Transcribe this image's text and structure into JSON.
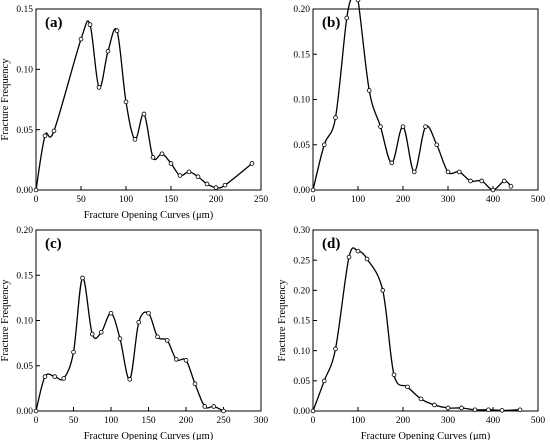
{
  "chart_data": [
    {
      "type": "line",
      "panel_label": "(a)",
      "xlabel": "Fracture Opening Curves (μm)",
      "ylabel": "Fracture Frequency",
      "xlim": [
        0,
        250
      ],
      "ylim": [
        0,
        0.15
      ],
      "xticks": [
        0,
        50,
        100,
        150,
        200,
        250
      ],
      "xtick_labels": [
        "0",
        "50",
        "100",
        "150",
        "200",
        "250"
      ],
      "yticks": [
        0,
        0.05,
        0.1,
        0.15
      ],
      "ytick_labels": [
        "0.00",
        "0.05",
        "0.10",
        "0.15"
      ],
      "grid": false,
      "x": [
        0,
        10,
        20,
        50,
        60,
        70,
        80,
        90,
        100,
        110,
        120,
        130,
        140,
        150,
        160,
        170,
        180,
        190,
        200,
        210,
        240
      ],
      "y": [
        0.0,
        0.045,
        0.049,
        0.125,
        0.137,
        0.085,
        0.115,
        0.132,
        0.073,
        0.042,
        0.063,
        0.027,
        0.03,
        0.022,
        0.012,
        0.015,
        0.011,
        0.005,
        0.002,
        0.004,
        0.022
      ]
    },
    {
      "type": "line",
      "panel_label": "(b)",
      "xlabel": "",
      "ylabel": "",
      "xlim": [
        0,
        500
      ],
      "ylim": [
        0,
        0.2
      ],
      "xticks": [
        0,
        100,
        200,
        300,
        400,
        500
      ],
      "xtick_labels": [
        "0",
        "100",
        "200",
        "300",
        "400",
        "500"
      ],
      "yticks": [
        0,
        0.05,
        0.1,
        0.15,
        0.2
      ],
      "ytick_labels": [
        "0.00",
        "0.05",
        "0.10",
        "0.15",
        "0.20"
      ],
      "grid": false,
      "x": [
        0,
        25,
        50,
        75,
        90,
        100,
        125,
        150,
        175,
        200,
        225,
        250,
        275,
        300,
        325,
        350,
        375,
        400,
        425,
        440
      ],
      "y": [
        0.0,
        0.05,
        0.08,
        0.19,
        0.215,
        0.21,
        0.11,
        0.07,
        0.03,
        0.07,
        0.02,
        0.07,
        0.05,
        0.02,
        0.02,
        0.01,
        0.01,
        0.0,
        0.01,
        0.004
      ]
    },
    {
      "type": "line",
      "panel_label": "(c)",
      "xlabel": "Fracture Opening Curves (μm)",
      "ylabel": "Fracture Frequency",
      "xlim": [
        0,
        300
      ],
      "ylim": [
        0,
        0.2
      ],
      "xticks": [
        0,
        50,
        100,
        150,
        200,
        250,
        300
      ],
      "xtick_labels": [
        "0",
        "50",
        "100",
        "150",
        "200",
        "250",
        "300"
      ],
      "yticks": [
        0,
        0.05,
        0.1,
        0.15,
        0.2
      ],
      "ytick_labels": [
        "0.00",
        "0.05",
        "0.10",
        "0.15",
        "0.20"
      ],
      "grid": false,
      "x": [
        0,
        12,
        25,
        37,
        50,
        62,
        75,
        87,
        100,
        112,
        125,
        137,
        150,
        162,
        175,
        187,
        200,
        212,
        225,
        237,
        250
      ],
      "y": [
        0.0,
        0.038,
        0.038,
        0.036,
        0.065,
        0.147,
        0.085,
        0.087,
        0.108,
        0.08,
        0.035,
        0.098,
        0.108,
        0.082,
        0.078,
        0.057,
        0.056,
        0.03,
        0.005,
        0.005,
        0.0
      ]
    },
    {
      "type": "line",
      "panel_label": "(d)",
      "xlabel": "Fracture Opening Curves (μm)",
      "ylabel": "Fracture Frequency",
      "xlim": [
        0,
        500
      ],
      "ylim": [
        0,
        0.3
      ],
      "xticks": [
        0,
        100,
        200,
        300,
        400,
        500
      ],
      "xtick_labels": [
        "0",
        "100",
        "200",
        "300",
        "400",
        "500"
      ],
      "yticks": [
        0,
        0.05,
        0.1,
        0.15,
        0.2,
        0.25,
        0.3
      ],
      "ytick_labels": [
        "0.00",
        "0.05",
        "0.10",
        "0.15",
        "0.20",
        "0.25",
        "0.30"
      ],
      "grid": false,
      "x": [
        0,
        25,
        50,
        80,
        100,
        120,
        155,
        180,
        210,
        240,
        270,
        300,
        330,
        360,
        390,
        420,
        460
      ],
      "y": [
        0.0,
        0.05,
        0.103,
        0.255,
        0.265,
        0.252,
        0.2,
        0.06,
        0.04,
        0.02,
        0.01,
        0.005,
        0.005,
        0.002,
        0.002,
        0.001,
        0.002
      ]
    }
  ]
}
